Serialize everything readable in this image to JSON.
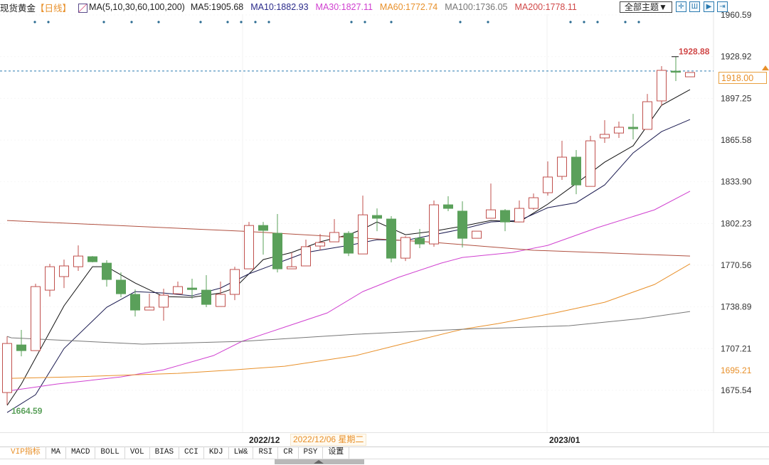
{
  "header": {
    "title": "现货黄金",
    "period": "【日线】",
    "ma_params": "MA(5,10,30,60,100,200)",
    "ma_values": [
      {
        "label": "MA5:1905.68",
        "color": "#222222"
      },
      {
        "label": "MA10:1882.93",
        "color": "#2a2a8a"
      },
      {
        "label": "MA30:1827.11",
        "color": "#d040d0"
      },
      {
        "label": "MA60:1772.74",
        "color": "#e8902a"
      },
      {
        "label": "MA100:1736.05",
        "color": "#777777"
      },
      {
        "label": "MA200:1778.11",
        "color": "#d04848"
      }
    ],
    "theme_button": "全部主题▼",
    "tool_icons": [
      "crosshair-icon",
      "zoom-in-icon",
      "play-icon",
      "scroll-end-icon"
    ]
  },
  "chart_data": {
    "type": "candlestick",
    "y_axis_ticks": [
      "1960.59",
      "1928.92",
      "1897.25",
      "1865.58",
      "1833.90",
      "1802.23",
      "1770.56",
      "1738.89",
      "1707.21",
      "1675.54"
    ],
    "ylim": [
      1647.0,
      1960.59
    ],
    "x_labels": [
      {
        "label": "2022/12",
        "index": 17
      },
      {
        "label": "2023/01",
        "index": 38
      }
    ],
    "current_date": "2022/12/06 星期二",
    "current_price": "1918.00",
    "side_marker": "1695.21",
    "high_label": "1928.88",
    "low_label": "1664.59",
    "colors": {
      "up": "#c0504d",
      "down": "#5aa05a",
      "current_line": "#2a7ab0"
    },
    "candles": [
      [
        1673.85,
        1716.5,
        1664.59,
        1711.11
      ],
      [
        1710.0,
        1721.4,
        1701.4,
        1705.7
      ],
      [
        1705.7,
        1756.5,
        1705.7,
        1754.3
      ],
      [
        1751.6,
        1771.6,
        1746.7,
        1769.4
      ],
      [
        1761.9,
        1774.8,
        1753.2,
        1770.0
      ],
      [
        1769.4,
        1785.6,
        1766.2,
        1777.5
      ],
      [
        1777.0,
        1777.5,
        1772.7,
        1773.2
      ],
      [
        1772.1,
        1774.3,
        1754.3,
        1759.7
      ],
      [
        1759.2,
        1765.1,
        1746.2,
        1748.9
      ],
      [
        1748.4,
        1752.1,
        1731.6,
        1736.5
      ],
      [
        1736.5,
        1748.9,
        1736.5,
        1738.7
      ],
      [
        1738.7,
        1752.7,
        1728.4,
        1747.8
      ],
      [
        1748.9,
        1758.1,
        1748.9,
        1754.3
      ],
      [
        1753.2,
        1760.3,
        1745.1,
        1752.1
      ],
      [
        1751.6,
        1763.0,
        1738.7,
        1740.8
      ],
      [
        1739.2,
        1758.1,
        1739.2,
        1748.4
      ],
      [
        1748.4,
        1769.4,
        1744.0,
        1767.3
      ],
      [
        1767.8,
        1803.4,
        1767.8,
        1800.7
      ],
      [
        1800.7,
        1803.4,
        1778.6,
        1797.0
      ],
      [
        1794.8,
        1809.4,
        1765.1,
        1767.8
      ],
      [
        1767.8,
        1780.2,
        1767.8,
        1769.4
      ],
      [
        1770.0,
        1790.0,
        1770.0,
        1784.6
      ],
      [
        1785.1,
        1794.3,
        1781.9,
        1787.8
      ],
      [
        1788.3,
        1805.6,
        1788.3,
        1795.4
      ],
      [
        1794.8,
        1796.4,
        1777.5,
        1779.7
      ],
      [
        1779.1,
        1823.4,
        1779.1,
        1808.8
      ],
      [
        1808.3,
        1813.7,
        1796.4,
        1806.2
      ],
      [
        1805.6,
        1807.8,
        1772.7,
        1775.9
      ],
      [
        1775.9,
        1792.6,
        1773.7,
        1791.6
      ],
      [
        1791.0,
        1798.1,
        1783.5,
        1786.7
      ],
      [
        1786.7,
        1819.7,
        1784.6,
        1816.4
      ],
      [
        1816.4,
        1822.9,
        1811.6,
        1813.7
      ],
      [
        1811.6,
        1819.1,
        1784.0,
        1791.0
      ],
      [
        1791.0,
        1796.4,
        1791.0,
        1796.4
      ],
      [
        1806.2,
        1832.6,
        1806.2,
        1812.6
      ],
      [
        1812.1,
        1813.2,
        1796.4,
        1803.4
      ],
      [
        1803.4,
        1819.7,
        1803.4,
        1813.7
      ],
      [
        1813.7,
        1825.0,
        1812.6,
        1821.8
      ],
      [
        1825.6,
        1849.4,
        1823.4,
        1837.5
      ],
      [
        1838.0,
        1865.0,
        1835.3,
        1852.6
      ],
      [
        1852.6,
        1858.0,
        1824.5,
        1831.5
      ],
      [
        1830.4,
        1868.8,
        1830.4,
        1865.0
      ],
      [
        1867.2,
        1880.7,
        1863.4,
        1869.9
      ],
      [
        1870.9,
        1879.6,
        1867.2,
        1875.3
      ],
      [
        1875.3,
        1885.5,
        1866.1,
        1874.2
      ],
      [
        1873.7,
        1900.6,
        1873.7,
        1894.7
      ],
      [
        1895.3,
        1921.7,
        1891.5,
        1918.5
      ],
      [
        1917.9,
        1928.88,
        1910.4,
        1917.4
      ],
      [
        1913.6,
        1916.9,
        1913.6,
        1916.9
      ]
    ],
    "candle_fields": [
      "open",
      "high",
      "low",
      "close"
    ],
    "series": [
      {
        "name": "MA5",
        "color": "#111111",
        "points": [
          [
            0,
            1664.1
          ],
          [
            1,
            1680.3
          ],
          [
            4,
            1739.7
          ],
          [
            6,
            1769.4
          ],
          [
            7,
            1769.4
          ],
          [
            9,
            1757.0
          ],
          [
            11,
            1746.7
          ],
          [
            13,
            1746.2
          ],
          [
            15,
            1749.4
          ],
          [
            16,
            1753.2
          ],
          [
            18,
            1774.8
          ],
          [
            20,
            1780.2
          ],
          [
            22,
            1788.3
          ],
          [
            24,
            1793.7
          ],
          [
            25,
            1798.0
          ],
          [
            26,
            1803.4
          ],
          [
            28,
            1793.7
          ],
          [
            30,
            1796.4
          ],
          [
            32,
            1800.2
          ],
          [
            34,
            1804.5
          ],
          [
            36,
            1803.4
          ],
          [
            38,
            1816.9
          ],
          [
            40,
            1832.6
          ],
          [
            42,
            1848.8
          ],
          [
            44,
            1861.2
          ],
          [
            46,
            1892.0
          ],
          [
            48,
            1903.9
          ]
        ]
      },
      {
        "name": "MA10",
        "color": "#1a1a50",
        "points": [
          [
            0,
            1658.7
          ],
          [
            2,
            1672.2
          ],
          [
            4,
            1707.3
          ],
          [
            7,
            1738.6
          ],
          [
            9,
            1750.5
          ],
          [
            11,
            1749.4
          ],
          [
            13,
            1747.3
          ],
          [
            15,
            1753.2
          ],
          [
            17,
            1764.0
          ],
          [
            19,
            1772.1
          ],
          [
            21,
            1780.2
          ],
          [
            24,
            1785.6
          ],
          [
            26,
            1789.9
          ],
          [
            28,
            1789.4
          ],
          [
            30,
            1793.7
          ],
          [
            32,
            1798.0
          ],
          [
            34,
            1803.4
          ],
          [
            36,
            1804.5
          ],
          [
            38,
            1814.2
          ],
          [
            40,
            1818.0
          ],
          [
            42,
            1831.5
          ],
          [
            44,
            1855.8
          ],
          [
            46,
            1872.0
          ],
          [
            48,
            1881.2
          ]
        ]
      },
      {
        "name": "MA30",
        "color": "#d040d0",
        "points": [
          [
            0,
            1674.9
          ],
          [
            3.5,
            1680.3
          ],
          [
            8,
            1685.7
          ],
          [
            11,
            1691.1
          ],
          [
            14.5,
            1701.9
          ],
          [
            16.5,
            1712.7
          ],
          [
            19.5,
            1723.5
          ],
          [
            22.5,
            1734.3
          ],
          [
            25,
            1750.5
          ],
          [
            27.5,
            1761.3
          ],
          [
            30.5,
            1772.1
          ],
          [
            32,
            1776.4
          ],
          [
            35.5,
            1780.2
          ],
          [
            38,
            1785.6
          ],
          [
            41.5,
            1799.1
          ],
          [
            45.5,
            1812.6
          ],
          [
            48,
            1826.7
          ]
        ]
      },
      {
        "name": "MA60",
        "color": "#e8902a",
        "points": [
          [
            0,
            1684.6
          ],
          [
            4.5,
            1685.7
          ],
          [
            12,
            1688.4
          ],
          [
            16,
            1691.1
          ],
          [
            19.5,
            1693.8
          ],
          [
            24.5,
            1701.9
          ],
          [
            27.5,
            1710.0
          ],
          [
            32,
            1721.9
          ],
          [
            34.5,
            1726.2
          ],
          [
            38.5,
            1734.3
          ],
          [
            42,
            1742.4
          ],
          [
            45.5,
            1755.9
          ],
          [
            48,
            1771.6
          ]
        ]
      },
      {
        "name": "MA100",
        "color": "#777777",
        "points": [
          [
            0,
            1716.5
          ],
          [
            0.3,
            1715.4
          ],
          [
            9.5,
            1710.6
          ],
          [
            16.5,
            1712.7
          ],
          [
            24.5,
            1718.1
          ],
          [
            32,
            1721.9
          ],
          [
            39.5,
            1724.6
          ],
          [
            44.5,
            1730.0
          ],
          [
            48,
            1735.4
          ]
        ]
      },
      {
        "name": "MA200",
        "color": "#b05040",
        "points": [
          [
            0,
            1804.5
          ],
          [
            16.5,
            1796.4
          ],
          [
            29.5,
            1788.3
          ],
          [
            37,
            1781.9
          ],
          [
            48,
            1777.5
          ]
        ]
      }
    ]
  },
  "footer": {
    "tabs": [
      "VIP指标",
      "MA",
      "MACD",
      "BOLL",
      "VOL",
      "BIAS",
      "CCI",
      "KDJ",
      "LW&",
      "RSI",
      "CR",
      "PSY",
      "设置"
    ]
  }
}
